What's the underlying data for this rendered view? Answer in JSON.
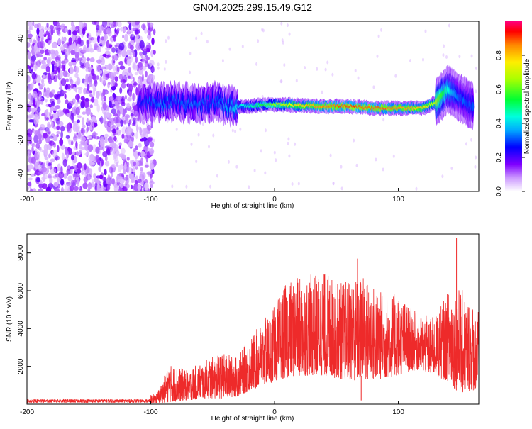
{
  "title": "GN04.2025.299.15.49.G12",
  "colors": {
    "snr_line": "#ee2a2a",
    "spectro_base": "#6f00ff",
    "axis": "#000000"
  },
  "chart_data": [
    {
      "type": "heatmap",
      "name": "spectrogram",
      "xlabel": "Height of straight line (km)",
      "ylabel": "Frequency (Hz)",
      "xlim": [
        -200,
        165
      ],
      "ylim": [
        -50,
        50
      ],
      "xticks": [
        "-200",
        "-100",
        "0",
        "100"
      ],
      "xtick_values": [
        -200,
        -100,
        0,
        100
      ],
      "yticks": [
        "-40",
        "-20",
        "0",
        "20",
        "40"
      ],
      "ytick_values": [
        -40,
        -20,
        0,
        20,
        40
      ],
      "noise_region_km": [
        -200,
        -100
      ],
      "ridge": [
        {
          "km": -110,
          "freq": 2,
          "amp": 0.25
        },
        {
          "km": -100,
          "freq": 3,
          "amp": 0.3
        },
        {
          "km": -90,
          "freq": 2,
          "amp": 0.32
        },
        {
          "km": -80,
          "freq": 3,
          "amp": 0.3
        },
        {
          "km": -70,
          "freq": 2,
          "amp": 0.32
        },
        {
          "km": -60,
          "freq": 1,
          "amp": 0.32
        },
        {
          "km": -50,
          "freq": 3,
          "amp": 0.3
        },
        {
          "km": -40,
          "freq": 1,
          "amp": 0.35
        },
        {
          "km": -30,
          "freq": 0,
          "amp": 0.4
        },
        {
          "km": -20,
          "freq": 0,
          "amp": 0.45
        },
        {
          "km": -10,
          "freq": 1,
          "amp": 0.55
        },
        {
          "km": 0,
          "freq": 1,
          "amp": 0.65
        },
        {
          "km": 10,
          "freq": 1,
          "amp": 0.72
        },
        {
          "km": 20,
          "freq": 0.5,
          "amp": 0.78
        },
        {
          "km": 40,
          "freq": 0,
          "amp": 0.85
        },
        {
          "km": 60,
          "freq": 0,
          "amp": 0.9
        },
        {
          "km": 80,
          "freq": -1,
          "amp": 0.88
        },
        {
          "km": 100,
          "freq": -1,
          "amp": 0.85
        },
        {
          "km": 120,
          "freq": -1,
          "amp": 0.8
        },
        {
          "km": 130,
          "freq": 2,
          "amp": 0.7
        },
        {
          "km": 140,
          "freq": 10,
          "amp": 0.45
        },
        {
          "km": 150,
          "freq": 5,
          "amp": 0.3
        },
        {
          "km": 160,
          "freq": 0,
          "amp": 0.3
        }
      ]
    },
    {
      "type": "colorbar",
      "name": "colorbar",
      "label": "Normalized spectral amplitude",
      "range": [
        0,
        1
      ],
      "ticks": [
        "0.0",
        "0.2",
        "0.4",
        "0.6",
        "0.8"
      ],
      "tick_values": [
        0.0,
        0.2,
        0.4,
        0.6,
        0.8
      ]
    },
    {
      "type": "line",
      "name": "snr",
      "xlabel": "Height of straight line (km)",
      "ylabel": "SNR (10 * v/v)",
      "xlim": [
        -200,
        165
      ],
      "ylim": [
        0,
        9000
      ],
      "xticks": [
        "-200",
        "-100",
        "0",
        "100"
      ],
      "xtick_values": [
        -200,
        -100,
        0,
        100
      ],
      "yticks": [
        "2000",
        "4000",
        "6000",
        "8000"
      ],
      "ytick_values": [
        2000,
        4000,
        6000,
        8000
      ],
      "envelope": [
        {
          "x": -200,
          "lo": 0,
          "hi": 300
        },
        {
          "x": -110,
          "lo": 0,
          "hi": 300
        },
        {
          "x": -95,
          "lo": 50,
          "hi": 600
        },
        {
          "x": -85,
          "lo": 100,
          "hi": 2100
        },
        {
          "x": -70,
          "lo": 200,
          "hi": 1800
        },
        {
          "x": -55,
          "lo": 300,
          "hi": 2400
        },
        {
          "x": -40,
          "lo": 300,
          "hi": 2700
        },
        {
          "x": -30,
          "lo": 400,
          "hi": 2500
        },
        {
          "x": -20,
          "lo": 700,
          "hi": 3500
        },
        {
          "x": 0,
          "lo": 1200,
          "hi": 5200
        },
        {
          "x": 10,
          "lo": 1400,
          "hi": 6500
        },
        {
          "x": 25,
          "lo": 1500,
          "hi": 6800
        },
        {
          "x": 40,
          "lo": 1500,
          "hi": 7000
        },
        {
          "x": 55,
          "lo": 1300,
          "hi": 6500
        },
        {
          "x": 70,
          "lo": 1200,
          "hi": 6900
        },
        {
          "x": 85,
          "lo": 1300,
          "hi": 6000
        },
        {
          "x": 100,
          "lo": 1500,
          "hi": 5800
        },
        {
          "x": 115,
          "lo": 1800,
          "hi": 4800
        },
        {
          "x": 130,
          "lo": 1500,
          "hi": 4600
        },
        {
          "x": 140,
          "lo": 1200,
          "hi": 6000
        },
        {
          "x": 150,
          "lo": 500,
          "hi": 6200
        },
        {
          "x": 165,
          "lo": 800,
          "hi": 5000
        }
      ],
      "spikes": [
        {
          "x": 67,
          "y": 7700
        },
        {
          "x": 147,
          "y": 8800
        },
        {
          "x": 143,
          "y": 5000
        },
        {
          "x": 70,
          "y": 200
        }
      ]
    }
  ]
}
